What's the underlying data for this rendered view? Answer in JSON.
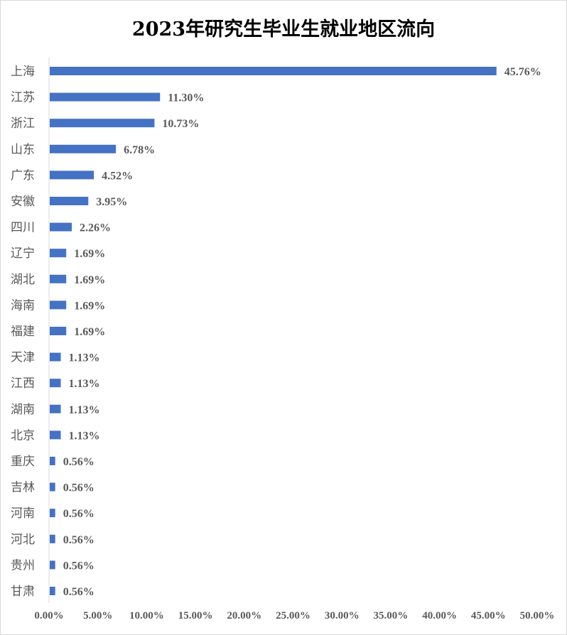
{
  "chart_data": {
    "type": "bar",
    "orientation": "horizontal",
    "title": "2023年研究生毕业生就业地区流向",
    "xlabel": "",
    "ylabel": "",
    "xlim": [
      0,
      50
    ],
    "ticks": [
      "0.00%",
      "5.00%",
      "10.00%",
      "15.00%",
      "20.00%",
      "25.00%",
      "30.00%",
      "35.00%",
      "40.00%",
      "45.00%",
      "50.00%"
    ],
    "tick_values": [
      0,
      5,
      10,
      15,
      20,
      25,
      30,
      35,
      40,
      45,
      50
    ],
    "grid": false,
    "bar_color": "#4472C4",
    "categories": [
      "上海",
      "江苏",
      "浙江",
      "山东",
      "广东",
      "安徽",
      "四川",
      "辽宁",
      "湖北",
      "海南",
      "福建",
      "天津",
      "江西",
      "湖南",
      "北京",
      "重庆",
      "吉林",
      "河南",
      "河北",
      "贵州",
      "甘肃"
    ],
    "values": [
      45.76,
      11.3,
      10.73,
      6.78,
      4.52,
      3.95,
      2.26,
      1.69,
      1.69,
      1.69,
      1.69,
      1.13,
      1.13,
      1.13,
      1.13,
      0.56,
      0.56,
      0.56,
      0.56,
      0.56,
      0.56
    ],
    "value_labels": [
      "45.76%",
      "11.30%",
      "10.73%",
      "6.78%",
      "4.52%",
      "3.95%",
      "2.26%",
      "1.69%",
      "1.69%",
      "1.69%",
      "1.69%",
      "1.13%",
      "1.13%",
      "1.13%",
      "1.13%",
      "0.56%",
      "0.56%",
      "0.56%",
      "0.56%",
      "0.56%",
      "0.56%"
    ]
  }
}
